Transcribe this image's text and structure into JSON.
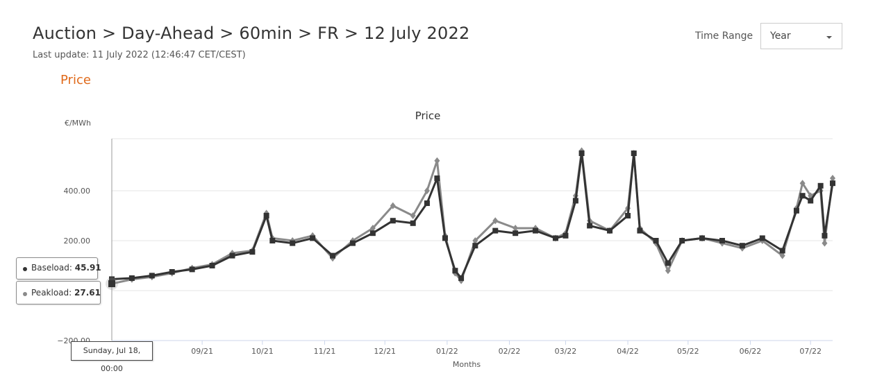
{
  "header": {
    "title": "Auction > Day-Ahead > 60min > FR > 12 July 2022",
    "last_update": "Last update: 11 July 2022 (12:46:47 CET/CEST)",
    "section": "Price",
    "time_range_label": "Time Range",
    "time_range_value": "Year"
  },
  "chart_data": {
    "type": "line",
    "title": "Price",
    "xlabel": "Months",
    "ylabel": "€/MWh",
    "ylim": [
      -200,
      550
    ],
    "y_ticks": [
      -200,
      0,
      200,
      400
    ],
    "y_tick_labels": [
      "−200.00",
      "",
      "200.00",
      "400.00"
    ],
    "x_range": [
      "2021-07-18",
      "2022-07-12"
    ],
    "x_ticks": [
      {
        "date": "2021-09-01",
        "label": "09/21"
      },
      {
        "date": "2021-10-01",
        "label": "10/21"
      },
      {
        "date": "2021-11-01",
        "label": "11/21"
      },
      {
        "date": "2021-12-01",
        "label": "12/21"
      },
      {
        "date": "2022-01-01",
        "label": "01/22"
      },
      {
        "date": "2022-02-01",
        "label": "02/22"
      },
      {
        "date": "2022-03-01",
        "label": "03/22"
      },
      {
        "date": "2022-04-01",
        "label": "04/22"
      },
      {
        "date": "2022-05-01",
        "label": "05/22"
      },
      {
        "date": "2022-06-01",
        "label": "06/22"
      },
      {
        "date": "2022-07-01",
        "label": "07/22"
      }
    ],
    "series": [
      {
        "name": "Baseload",
        "color": "#333333",
        "marker": "square",
        "points": [
          [
            "2021-07-18",
            45.91
          ],
          [
            "2021-07-28",
            50
          ],
          [
            "2021-08-07",
            60
          ],
          [
            "2021-08-17",
            75
          ],
          [
            "2021-08-27",
            85
          ],
          [
            "2021-09-06",
            100
          ],
          [
            "2021-09-16",
            140
          ],
          [
            "2021-09-26",
            155
          ],
          [
            "2021-10-03",
            300
          ],
          [
            "2021-10-06",
            200
          ],
          [
            "2021-10-16",
            190
          ],
          [
            "2021-10-26",
            210
          ],
          [
            "2021-11-05",
            140
          ],
          [
            "2021-11-15",
            190
          ],
          [
            "2021-11-25",
            230
          ],
          [
            "2021-12-05",
            280
          ],
          [
            "2021-12-15",
            270
          ],
          [
            "2021-12-22",
            350
          ],
          [
            "2021-12-27",
            450
          ],
          [
            "2021-12-31",
            210
          ],
          [
            "2022-01-05",
            80
          ],
          [
            "2022-01-08",
            50
          ],
          [
            "2022-01-15",
            180
          ],
          [
            "2022-01-25",
            240
          ],
          [
            "2022-02-04",
            230
          ],
          [
            "2022-02-14",
            240
          ],
          [
            "2022-02-24",
            210
          ],
          [
            "2022-03-01",
            220
          ],
          [
            "2022-03-06",
            360
          ],
          [
            "2022-03-09",
            550
          ],
          [
            "2022-03-13",
            260
          ],
          [
            "2022-03-23",
            240
          ],
          [
            "2022-04-01",
            300
          ],
          [
            "2022-04-04",
            550
          ],
          [
            "2022-04-07",
            240
          ],
          [
            "2022-04-15",
            200
          ],
          [
            "2022-04-21",
            110
          ],
          [
            "2022-04-28",
            200
          ],
          [
            "2022-05-08",
            210
          ],
          [
            "2022-05-18",
            200
          ],
          [
            "2022-05-28",
            180
          ],
          [
            "2022-06-07",
            210
          ],
          [
            "2022-06-17",
            160
          ],
          [
            "2022-06-24",
            320
          ],
          [
            "2022-06-27",
            380
          ],
          [
            "2022-07-01",
            360
          ],
          [
            "2022-07-06",
            420
          ],
          [
            "2022-07-08",
            220
          ],
          [
            "2022-07-12",
            430
          ]
        ]
      },
      {
        "name": "Peakload",
        "color": "#8a8a8a",
        "marker": "diamond",
        "points": [
          [
            "2021-07-18",
            27.61
          ],
          [
            "2021-07-28",
            45
          ],
          [
            "2021-08-07",
            55
          ],
          [
            "2021-08-17",
            70
          ],
          [
            "2021-08-27",
            90
          ],
          [
            "2021-09-06",
            105
          ],
          [
            "2021-09-16",
            150
          ],
          [
            "2021-09-26",
            160
          ],
          [
            "2021-10-03",
            310
          ],
          [
            "2021-10-06",
            210
          ],
          [
            "2021-10-16",
            200
          ],
          [
            "2021-10-26",
            220
          ],
          [
            "2021-11-05",
            130
          ],
          [
            "2021-11-15",
            200
          ],
          [
            "2021-11-25",
            250
          ],
          [
            "2021-12-05",
            340
          ],
          [
            "2021-12-15",
            300
          ],
          [
            "2021-12-22",
            400
          ],
          [
            "2021-12-27",
            520
          ],
          [
            "2021-12-31",
            220
          ],
          [
            "2022-01-05",
            70
          ],
          [
            "2022-01-08",
            40
          ],
          [
            "2022-01-15",
            200
          ],
          [
            "2022-01-25",
            280
          ],
          [
            "2022-02-04",
            250
          ],
          [
            "2022-02-14",
            250
          ],
          [
            "2022-02-24",
            210
          ],
          [
            "2022-03-01",
            230
          ],
          [
            "2022-03-06",
            380
          ],
          [
            "2022-03-09",
            560
          ],
          [
            "2022-03-13",
            280
          ],
          [
            "2022-03-23",
            240
          ],
          [
            "2022-04-01",
            330
          ],
          [
            "2022-04-04",
            550
          ],
          [
            "2022-04-07",
            250
          ],
          [
            "2022-04-15",
            190
          ],
          [
            "2022-04-21",
            80
          ],
          [
            "2022-04-28",
            200
          ],
          [
            "2022-05-08",
            210
          ],
          [
            "2022-05-18",
            190
          ],
          [
            "2022-05-28",
            170
          ],
          [
            "2022-06-07",
            200
          ],
          [
            "2022-06-17",
            140
          ],
          [
            "2022-06-24",
            330
          ],
          [
            "2022-06-27",
            430
          ],
          [
            "2022-07-01",
            380
          ],
          [
            "2022-07-06",
            400
          ],
          [
            "2022-07-08",
            190
          ],
          [
            "2022-07-12",
            450
          ]
        ]
      }
    ],
    "tooltip": {
      "date": "Sunday, Jul 18, 00:00",
      "rows": [
        {
          "label": "Baseload",
          "value": "45.91"
        },
        {
          "label": "Peakload",
          "value": "27.61"
        }
      ]
    }
  }
}
